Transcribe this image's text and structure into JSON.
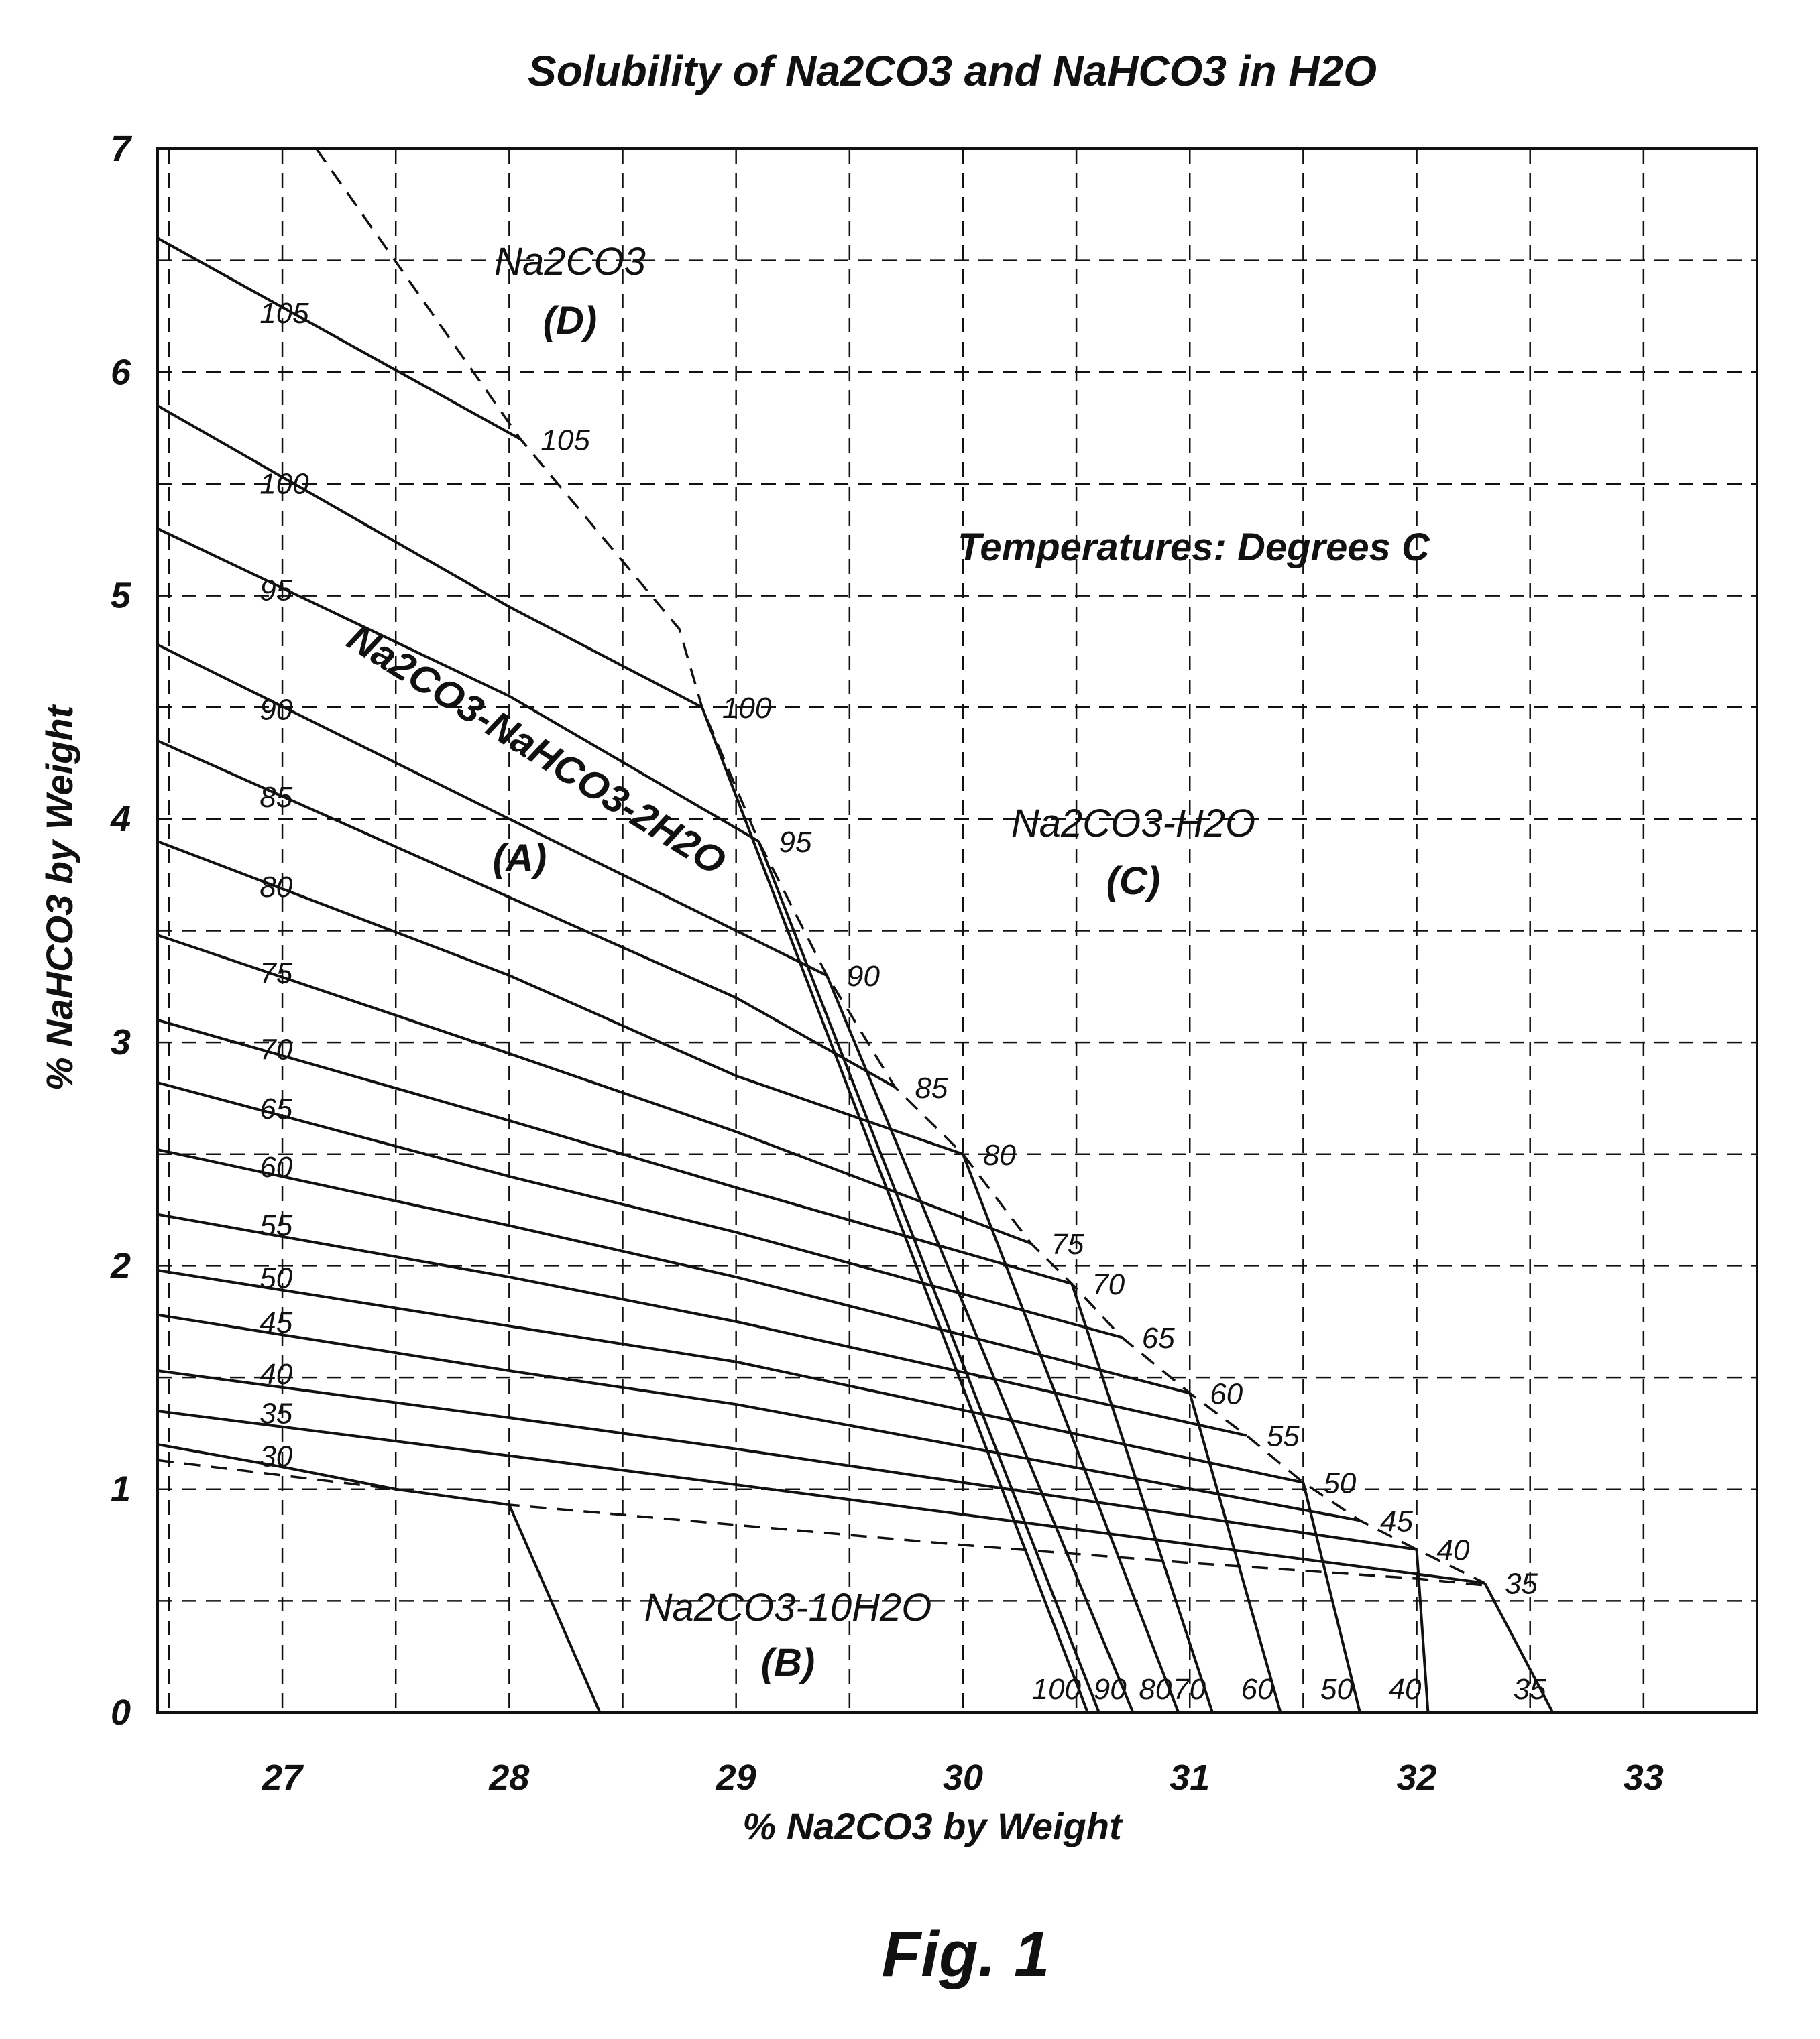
{
  "chart_data": {
    "type": "line",
    "title": "Solubility of Na2CO3 and NaHCO3 in H2O",
    "xlabel": "% Na2CO3 by Weight",
    "ylabel": "% NaHCO3 by Weight",
    "xlim": [
      26.45,
      33.5
    ],
    "ylim": [
      0,
      7
    ],
    "x_ticks": [
      "27",
      "28",
      "29",
      "30",
      "31",
      "32",
      "33"
    ],
    "y_ticks": [
      "0",
      "1",
      "2",
      "3",
      "4",
      "5",
      "6",
      "7"
    ],
    "grid": true,
    "annotation": "Temperatures: Degrees C",
    "regions": [
      {
        "label": "Na2CO3",
        "sub": "(D)"
      },
      {
        "label": "Na2CO3-NaHCO3-2H2O",
        "sub": "(A)"
      },
      {
        "label": "Na2CO3-H2O",
        "sub": "(C)"
      },
      {
        "label": "Na2CO3-10H2O",
        "sub": "(B)"
      }
    ],
    "isotherms": [
      {
        "name": "105",
        "x": [
          26.45,
          28.05
        ],
        "y": [
          6.6,
          5.7
        ]
      },
      {
        "name": "100",
        "x": [
          26.45,
          28.0,
          28.85
        ],
        "y": [
          5.85,
          4.95,
          4.5
        ]
      },
      {
        "name": "95",
        "x": [
          26.45,
          28.0,
          29.1
        ],
        "y": [
          5.3,
          4.55,
          3.9
        ]
      },
      {
        "name": "90",
        "x": [
          26.45,
          28.0,
          29.4
        ],
        "y": [
          4.78,
          4.0,
          3.3
        ]
      },
      {
        "name": "85",
        "x": [
          26.45,
          28.0,
          29.0,
          29.7
        ],
        "y": [
          4.35,
          3.65,
          3.2,
          2.8
        ]
      },
      {
        "name": "80",
        "x": [
          26.45,
          28.0,
          29.0,
          30.0
        ],
        "y": [
          3.9,
          3.3,
          2.85,
          2.5
        ]
      },
      {
        "name": "75",
        "x": [
          26.45,
          28.0,
          29.0,
          30.3
        ],
        "y": [
          3.48,
          2.95,
          2.6,
          2.1
        ]
      },
      {
        "name": "70",
        "x": [
          26.45,
          28.0,
          29.0,
          30.48
        ],
        "y": [
          3.1,
          2.65,
          2.35,
          1.92
        ]
      },
      {
        "name": "65",
        "x": [
          26.45,
          28.0,
          29.0,
          30.7
        ],
        "y": [
          2.82,
          2.4,
          2.15,
          1.68
        ]
      },
      {
        "name": "60",
        "x": [
          26.45,
          28.0,
          29.0,
          31.0
        ],
        "y": [
          2.52,
          2.18,
          1.95,
          1.43
        ]
      },
      {
        "name": "55",
        "x": [
          26.45,
          28.0,
          29.0,
          31.25
        ],
        "y": [
          2.23,
          1.95,
          1.75,
          1.24
        ]
      },
      {
        "name": "50",
        "x": [
          26.45,
          28.0,
          29.0,
          31.5
        ],
        "y": [
          1.98,
          1.73,
          1.57,
          1.03
        ]
      },
      {
        "name": "45",
        "x": [
          26.45,
          28.0,
          29.0,
          31.75
        ],
        "y": [
          1.78,
          1.53,
          1.38,
          0.86
        ]
      },
      {
        "name": "40",
        "x": [
          26.45,
          28.0,
          29.0,
          32.0
        ],
        "y": [
          1.53,
          1.32,
          1.18,
          0.73
        ]
      },
      {
        "name": "35",
        "x": [
          26.45,
          28.0,
          29.0,
          32.3
        ],
        "y": [
          1.35,
          1.15,
          1.02,
          0.58
        ]
      },
      {
        "name": "30",
        "x": [
          26.45,
          27.0,
          27.5,
          28.0
        ],
        "y": [
          1.2,
          1.1,
          1.0,
          0.93
        ]
      }
    ],
    "upper_boundary": {
      "style": "dashed",
      "x": [
        27.15,
        28.05,
        28.75,
        28.85,
        29.1,
        29.4,
        29.7,
        30.0,
        30.3,
        30.48,
        30.7,
        31.0,
        31.25,
        31.5,
        31.75,
        32.0,
        32.3
      ],
      "y": [
        7.0,
        5.7,
        4.85,
        4.5,
        3.9,
        3.3,
        2.8,
        2.5,
        2.1,
        1.92,
        1.68,
        1.43,
        1.24,
        1.03,
        0.86,
        0.73,
        0.58
      ]
    },
    "lower_boundary": {
      "style": "dashed",
      "x": [
        26.45,
        27.5,
        28.0,
        29.0,
        30.0,
        31.0,
        32.0,
        32.3
      ],
      "y": [
        1.13,
        1.0,
        0.93,
        0.84,
        0.75,
        0.67,
        0.6,
        0.57
      ]
    },
    "descending_lines": [
      {
        "name": "100",
        "x": [
          28.85,
          30.55
        ],
        "y": [
          4.5,
          0.0
        ]
      },
      {
        "name": "95",
        "x": [
          29.1,
          30.6
        ],
        "y": [
          3.9,
          0.0
        ]
      },
      {
        "name": "90",
        "x": [
          29.4,
          30.75
        ],
        "y": [
          3.3,
          0.0
        ]
      },
      {
        "name": "80",
        "x": [
          30.0,
          30.95
        ],
        "y": [
          2.5,
          0.0
        ]
      },
      {
        "name": "70",
        "x": [
          30.48,
          31.1
        ],
        "y": [
          1.92,
          0.0
        ]
      },
      {
        "name": "60",
        "x": [
          31.0,
          31.4
        ],
        "y": [
          1.43,
          0.0
        ]
      },
      {
        "name": "50",
        "x": [
          31.5,
          31.75
        ],
        "y": [
          1.03,
          0.0
        ]
      },
      {
        "name": "40",
        "x": [
          32.0,
          32.05
        ],
        "y": [
          0.73,
          0.0
        ]
      },
      {
        "name": "35",
        "x": [
          32.3,
          32.6
        ],
        "y": [
          0.58,
          0.0
        ]
      },
      {
        "name": "",
        "x": [
          28.0,
          28.4
        ],
        "y": [
          0.93,
          0.0
        ]
      }
    ],
    "left_labels": [
      "105",
      "100",
      "95",
      "90",
      "85",
      "80",
      "75",
      "70",
      "65",
      "60",
      "55",
      "50",
      "45",
      "40",
      "35",
      "30"
    ],
    "boundary_labels": [
      "105",
      "100",
      "95",
      "90",
      "85",
      "80",
      "75",
      "70",
      "65",
      "60",
      "55",
      "50",
      "45",
      "40",
      "35"
    ],
    "bottom_labels": [
      "100",
      "90",
      "80",
      "70",
      "60",
      "50",
      "40",
      "35"
    ]
  },
  "figure_label": "Fig. 1"
}
